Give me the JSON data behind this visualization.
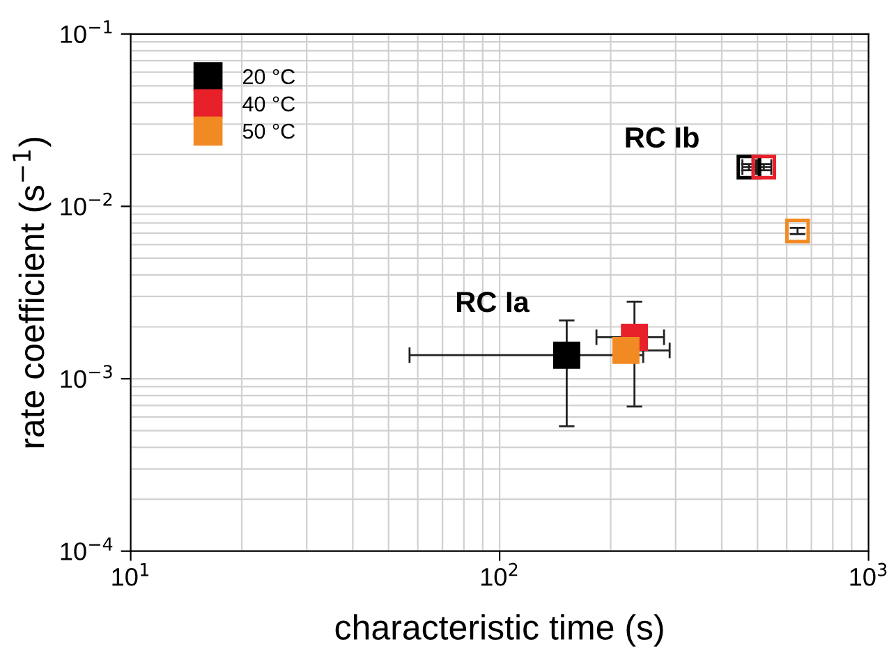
{
  "chart_data": {
    "type": "scatter",
    "xlabel": "characteristic time (s)",
    "ylabel": "rate coefficient (s$^{−1}$)",
    "log": "xy",
    "xlim": [
      10,
      1000
    ],
    "ylim": [
      0.0001,
      0.1
    ],
    "xticks": [
      {
        "value": 10,
        "label": "10$^{1}$"
      },
      {
        "value": 100,
        "label": "10$^{2}$"
      },
      {
        "value": 1000,
        "label": "10$^{3}$"
      }
    ],
    "yticks": [
      {
        "value": 0.0001,
        "label": "10$^{−4}$"
      },
      {
        "value": 0.001,
        "label": "10$^{−3}$"
      },
      {
        "value": 0.01,
        "label": "10$^{−2}$"
      },
      {
        "value": 0.1,
        "label": "10$^{−1}$"
      }
    ],
    "grid": true,
    "legend": "top left",
    "marker": "square",
    "series": [
      {
        "name": "20 °C",
        "color": "#000000",
        "x": [
          152
        ],
        "values": [
          0.00137
        ],
        "errors": [
          [
            0.00053,
            0.00218
          ]
        ],
        "xerrors": [
          [
            57,
            245
          ]
        ]
      },
      {
        "name": "40 °C",
        "color": "#e8202a",
        "x": [
          232
        ],
        "values": [
          0.00174
        ],
        "errors": [
          [
            0.00069,
            0.0028
          ]
        ],
        "xerrors": [
          [
            183,
            279
          ]
        ]
      },
      {
        "name": "50 °C",
        "color": "#f28a24",
        "x": [
          220
        ],
        "values": [
          0.00146
        ],
        "xerrors": [
          [
            220,
            289
          ]
        ]
      },
      {
        "color": "#000000",
        "x": [
          474
        ],
        "values": [
          0.0169
        ],
        "errors": [
          [
            0.0162,
            0.0176
          ]
        ],
        "xerrors": [
          [
            455,
            495
          ]
        ]
      },
      {
        "color": "#e8202a",
        "x": [
          520
        ],
        "values": [
          0.0169
        ],
        "errors": [
          [
            0.0162,
            0.0176
          ]
        ],
        "xerrors": [
          [
            500,
            545
          ]
        ]
      },
      {
        "color": "#f28a24",
        "x": [
          642
        ],
        "values": [
          0.0072
        ],
        "errors": [
          [
            0.0069,
            0.0075
          ]
        ]
      }
    ],
    "annotations": [
      "RC Ia",
      "RC Ib"
    ]
  }
}
